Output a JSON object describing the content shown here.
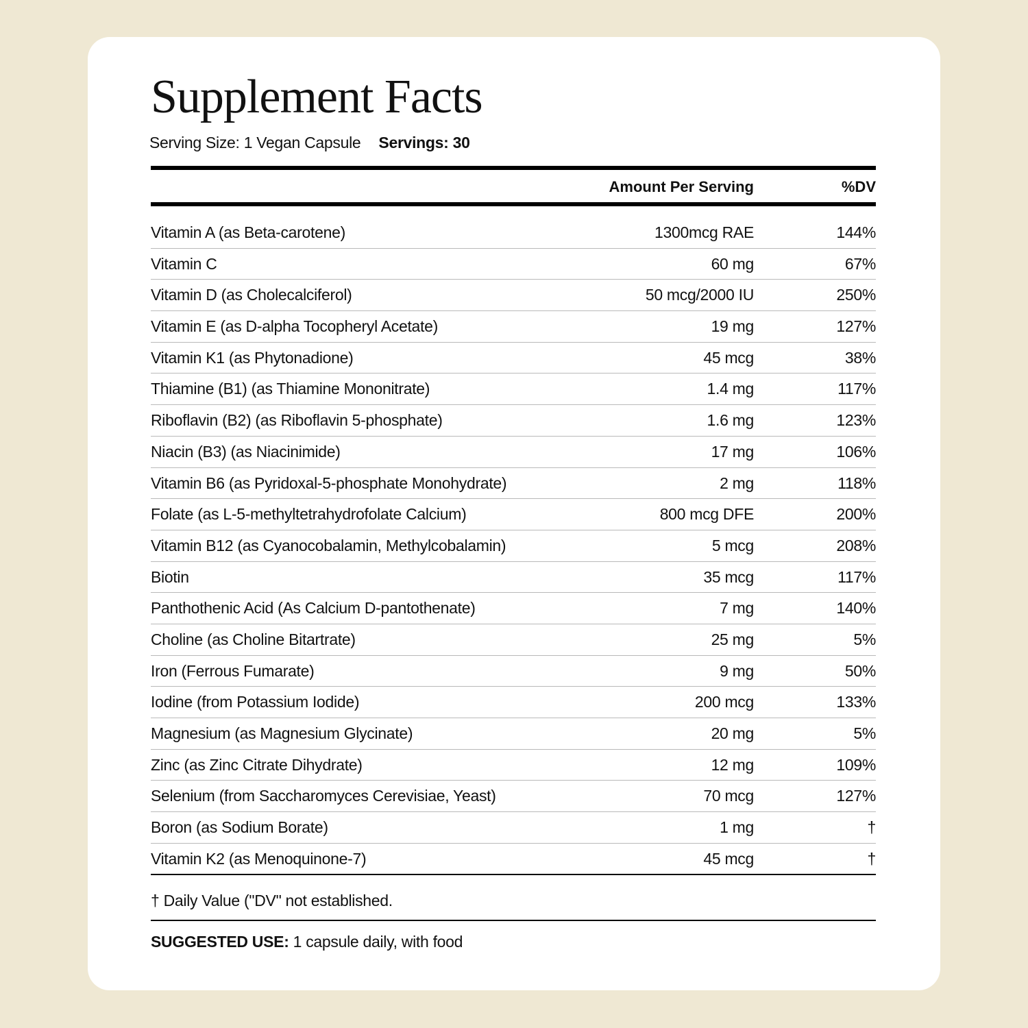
{
  "title": "Supplement Facts",
  "serving_size": "Serving Size: 1 Vegan Capsule",
  "servings": "Servings: 30",
  "header": {
    "amount": "Amount Per Serving",
    "dv": "%DV"
  },
  "rows": [
    {
      "name": "Vitamin A (as Beta-carotene)",
      "amount": "1300mcg RAE",
      "dv": "144%"
    },
    {
      "name": "Vitamin C",
      "amount": "60 mg",
      "dv": "67%"
    },
    {
      "name": "Vitamin D (as Cholecalciferol)",
      "amount": "50 mcg/2000 IU",
      "dv": "250%"
    },
    {
      "name": "Vitamin E (as D-alpha Tocopheryl Acetate)",
      "amount": "19 mg",
      "dv": "127%"
    },
    {
      "name": "Vitamin K1 (as Phytonadione)",
      "amount": "45 mcg",
      "dv": "38%"
    },
    {
      "name": "Thiamine (B1) (as Thiamine Mononitrate)",
      "amount": "1.4 mg",
      "dv": "117%"
    },
    {
      "name": "Riboflavin (B2) (as Riboflavin 5-phosphate)",
      "amount": "1.6 mg",
      "dv": "123%"
    },
    {
      "name": "Niacin (B3) (as Niacinimide)",
      "amount": "17 mg",
      "dv": "106%"
    },
    {
      "name": "Vitamin B6 (as Pyridoxal-5-phosphate Monohydrate)",
      "amount": "2 mg",
      "dv": "118%"
    },
    {
      "name": "Folate (as L-5-methyltetrahydrofolate Calcium)",
      "amount": "800 mcg DFE",
      "dv": "200%"
    },
    {
      "name": "Vitamin B12 (as Cyanocobalamin, Methylcobalamin)",
      "amount": "5 mcg",
      "dv": "208%"
    },
    {
      "name": "Biotin",
      "amount": "35 mcg",
      "dv": "117%"
    },
    {
      "name": "Panthothenic Acid (As Calcium D-pantothenate)",
      "amount": "7 mg",
      "dv": "140%"
    },
    {
      "name": "Choline (as Choline Bitartrate)",
      "amount": "25 mg",
      "dv": "5%"
    },
    {
      "name": "Iron (Ferrous Fumarate)",
      "amount": "9 mg",
      "dv": "50%"
    },
    {
      "name": "Iodine (from Potassium Iodide)",
      "amount": "200 mcg",
      "dv": "133%"
    },
    {
      "name": "Magnesium (as Magnesium Glycinate)",
      "amount": "20 mg",
      "dv": "5%"
    },
    {
      "name": "Zinc (as Zinc Citrate Dihydrate)",
      "amount": "12 mg",
      "dv": "109%"
    },
    {
      "name": "Selenium (from Saccharomyces Cerevisiae, Yeast)",
      "amount": "70 mcg",
      "dv": "127%"
    },
    {
      "name": "Boron (as Sodium Borate)",
      "amount": "1 mg",
      "dv": "†"
    },
    {
      "name": "Vitamin K2 (as Menoquinone-7)",
      "amount": "45 mcg",
      "dv": "†"
    }
  ],
  "footnote": "† Daily Value (\"DV\" not established.",
  "suggested_use": {
    "label": "SUGGESTED USE:",
    "text": " 1 capsule daily, with food"
  }
}
